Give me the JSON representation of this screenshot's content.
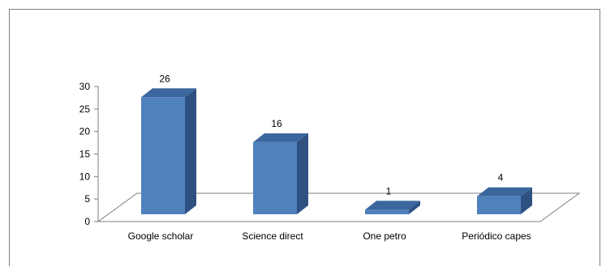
{
  "chart_data": {
    "type": "bar",
    "style": "3d-column",
    "categories": [
      "Google scholar",
      "Science direct",
      "One petro",
      "Periódico capes"
    ],
    "values": [
      26,
      16,
      1,
      4
    ],
    "data_labels": [
      "26",
      "16",
      "1",
      "4"
    ],
    "title": "",
    "xlabel": "",
    "ylabel": "",
    "ylim": [
      0,
      30
    ],
    "yticks": [
      "0",
      "5",
      "10",
      "15",
      "20",
      "25",
      "30"
    ],
    "grid": false,
    "legend": false,
    "colors": {
      "bar_front": "#4f81bd",
      "bar_side": "#2f5182",
      "bar_top": "#3c679e",
      "floor": "#ffffff",
      "axis": "#7f7f7f"
    }
  }
}
